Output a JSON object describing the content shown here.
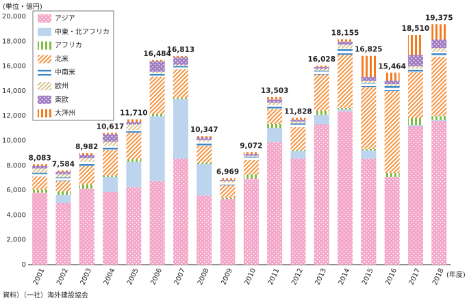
{
  "chart_data": {
    "type": "stacked-bar",
    "unit_label": "(単位・億円)",
    "x_unit_label": "(年度)",
    "source": "資料）（一社）海外建設協会",
    "categories": [
      "2001",
      "2002",
      "2003",
      "2004",
      "2005",
      "2006",
      "2007",
      "2008",
      "2009",
      "2010",
      "2011",
      "2012",
      "2013",
      "2014",
      "2015",
      "2016",
      "2017",
      "2018"
    ],
    "ylim": [
      0,
      20000
    ],
    "yticks": [
      0,
      {
        "value": 2000,
        "label": "2,000"
      },
      {
        "value": 4000,
        "label": "4,000"
      },
      {
        "value": 6000,
        "label": "6,000"
      },
      {
        "value": 8000,
        "label": "8,000"
      },
      {
        "value": 10000,
        "label": "10,000"
      },
      {
        "value": 12000,
        "label": "12,000"
      },
      {
        "value": 14000,
        "label": "14,000"
      },
      {
        "value": 16000,
        "label": "16,000"
      },
      {
        "value": 18000,
        "label": "18,000"
      },
      {
        "value": 20000,
        "label": "20,000"
      }
    ],
    "totals": [
      8083,
      7584,
      8982,
      10617,
      11710,
      16484,
      16813,
      10347,
      6969,
      9072,
      13503,
      11828,
      16028,
      18155,
      16825,
      15464,
      18510,
      19375
    ],
    "total_labels": [
      "8,083",
      "7,584",
      "8,982",
      "10,617",
      "11,710",
      "16,484",
      "16,813",
      "10,347",
      "6,969",
      "9,072",
      "13,503",
      "11,828",
      "16,028",
      "18,155",
      "16,825",
      "15,464",
      "18,510",
      "19,375"
    ],
    "series": [
      {
        "name": "アジア",
        "color": "#f4a6c8",
        "pattern": "dots",
        "values": [
          5800,
          4960,
          6120,
          5840,
          6230,
          6720,
          8540,
          5570,
          5290,
          6940,
          9860,
          8540,
          11300,
          12340,
          8540,
          7050,
          11130,
          11570
        ]
      },
      {
        "name": "中東・北アフリカ",
        "color": "#bcd4ee",
        "pattern": "solid",
        "values": [
          0,
          660,
          0,
          1210,
          2040,
          5230,
          4790,
          2530,
          0,
          0,
          1160,
          610,
          770,
          170,
          660,
          0,
          110,
          110
        ]
      },
      {
        "name": "アフリカ",
        "color": "#7dbb42",
        "pattern": "vlines",
        "values": [
          250,
          280,
          330,
          110,
          220,
          170,
          110,
          110,
          110,
          330,
          330,
          110,
          330,
          110,
          110,
          330,
          550,
          280
        ]
      },
      {
        "name": "北米",
        "color": "#f5923e",
        "pattern": "diag",
        "values": [
          1050,
          830,
          1490,
          2100,
          2150,
          3030,
          2310,
          1380,
          990,
          1160,
          1210,
          1820,
          2920,
          4300,
          5010,
          6610,
          3750,
          4790
        ]
      },
      {
        "name": "中南米",
        "color": "#3b87c6",
        "pattern": "hlines",
        "values": [
          300,
          300,
          350,
          300,
          200,
          250,
          250,
          300,
          200,
          250,
          300,
          300,
          300,
          500,
          300,
          400,
          250,
          400
        ]
      },
      {
        "name": "欧州",
        "color": "#d8c48e",
        "pattern": "diag",
        "values": [
          350,
          250,
          300,
          350,
          450,
          150,
          100,
          150,
          150,
          100,
          200,
          150,
          150,
          300,
          200,
          150,
          200,
          300
        ]
      },
      {
        "name": "東欧",
        "color": "#a07cc0",
        "pattern": "dots",
        "values": [
          200,
          200,
          250,
          600,
          200,
          834,
          600,
          200,
          100,
          150,
          250,
          150,
          150,
          250,
          300,
          300,
          900,
          700
        ]
      },
      {
        "name": "大洋州",
        "color": "#f47a20",
        "pattern": "vlines",
        "values": [
          133,
          104,
          142,
          107,
          220,
          100,
          113,
          107,
          129,
          142,
          193,
          148,
          108,
          185,
          1705,
          624,
          1620,
          1225
        ]
      }
    ]
  }
}
